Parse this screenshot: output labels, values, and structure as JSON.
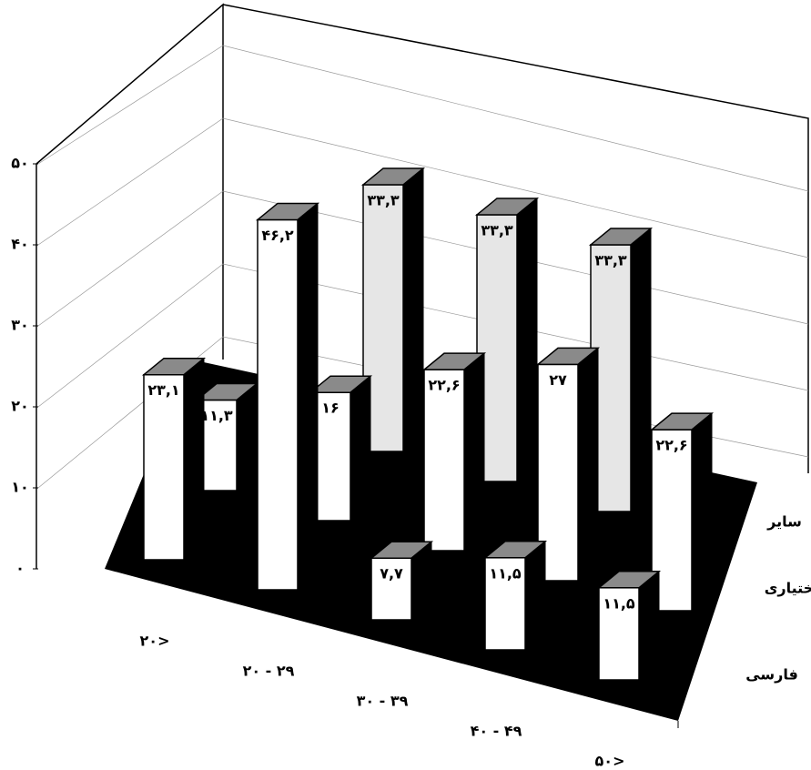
{
  "chart_data": {
    "type": "bar3d",
    "categories": [
      "۲۰>",
      "۲۰ - ۲۹",
      "۳۰ - ۳۹",
      "۴۰ - ۴۹",
      "۵۰>"
    ],
    "series": [
      {
        "name": "فارسی",
        "color": "#ffffff",
        "values": [
          23.1,
          46.2,
          7.7,
          11.5,
          11.5
        ],
        "value_labels": [
          "۲۳,۱",
          "۴۶,۲",
          "۷,۷",
          "۱۱,۵",
          "۱۱,۵"
        ]
      },
      {
        "name": "بختیاری",
        "color": "#ffffff",
        "values": [
          11.3,
          16,
          22.6,
          27,
          22.6
        ],
        "value_labels": [
          "۱۱,۳",
          "۱۶",
          "۲۲,۶",
          "۲۷",
          "۲۲,۶"
        ]
      },
      {
        "name": "سایر",
        "color": "#e6e6e6",
        "values": [
          null,
          33.3,
          33.3,
          33.3,
          null
        ],
        "value_labels": [
          null,
          "۳۳,۳",
          "۳۳,۳",
          "۳۳,۳",
          null
        ]
      }
    ],
    "ylim": [
      0,
      50
    ],
    "yticks": [
      {
        "value": 0,
        "label": "۰"
      },
      {
        "value": 10,
        "label": "۱۰"
      },
      {
        "value": 20,
        "label": "۲۰"
      },
      {
        "value": 30,
        "label": "۳۰"
      },
      {
        "value": 40,
        "label": "۴۰"
      },
      {
        "value": 50,
        "label": "۵۰"
      }
    ],
    "grid": true
  }
}
